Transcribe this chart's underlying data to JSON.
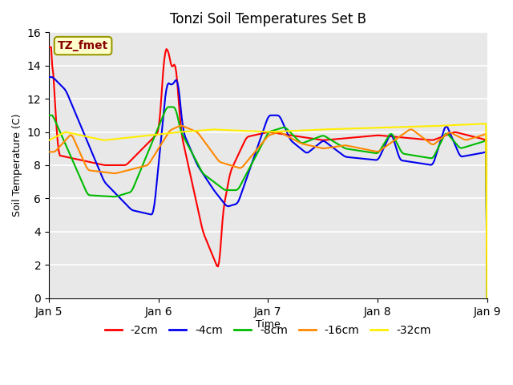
{
  "title": "Tonzi Soil Temperatures Set B",
  "xlabel": "Time",
  "ylabel": "Soil Temperature (C)",
  "ylim": [
    0,
    16
  ],
  "yticks": [
    0,
    2,
    4,
    6,
    8,
    10,
    12,
    14,
    16
  ],
  "plot_bg": "#e8e8e8",
  "fig_bg": "#ffffff",
  "annotation_text": "TZ_fmet",
  "annotation_bg": "#ffffcc",
  "annotation_border": "#999900",
  "annotation_color": "#880000",
  "colors": {
    "-2cm": "#ff0000",
    "-4cm": "#0000ee",
    "-8cm": "#00bb00",
    "-16cm": "#ff8800",
    "-32cm": "#ffee00"
  },
  "legend_labels": [
    "-2cm",
    "-4cm",
    "-8cm",
    "-16cm",
    "-32cm"
  ],
  "x_start": 0,
  "x_end": 4.0,
  "xtick_positions": [
    0,
    1,
    2,
    3,
    4
  ],
  "xtick_labels": [
    "Jan 5",
    "Jan 6",
    "Jan 7",
    "Jan 8",
    "Jan 9"
  ],
  "figsize": [
    6.4,
    4.8
  ],
  "dpi": 100
}
